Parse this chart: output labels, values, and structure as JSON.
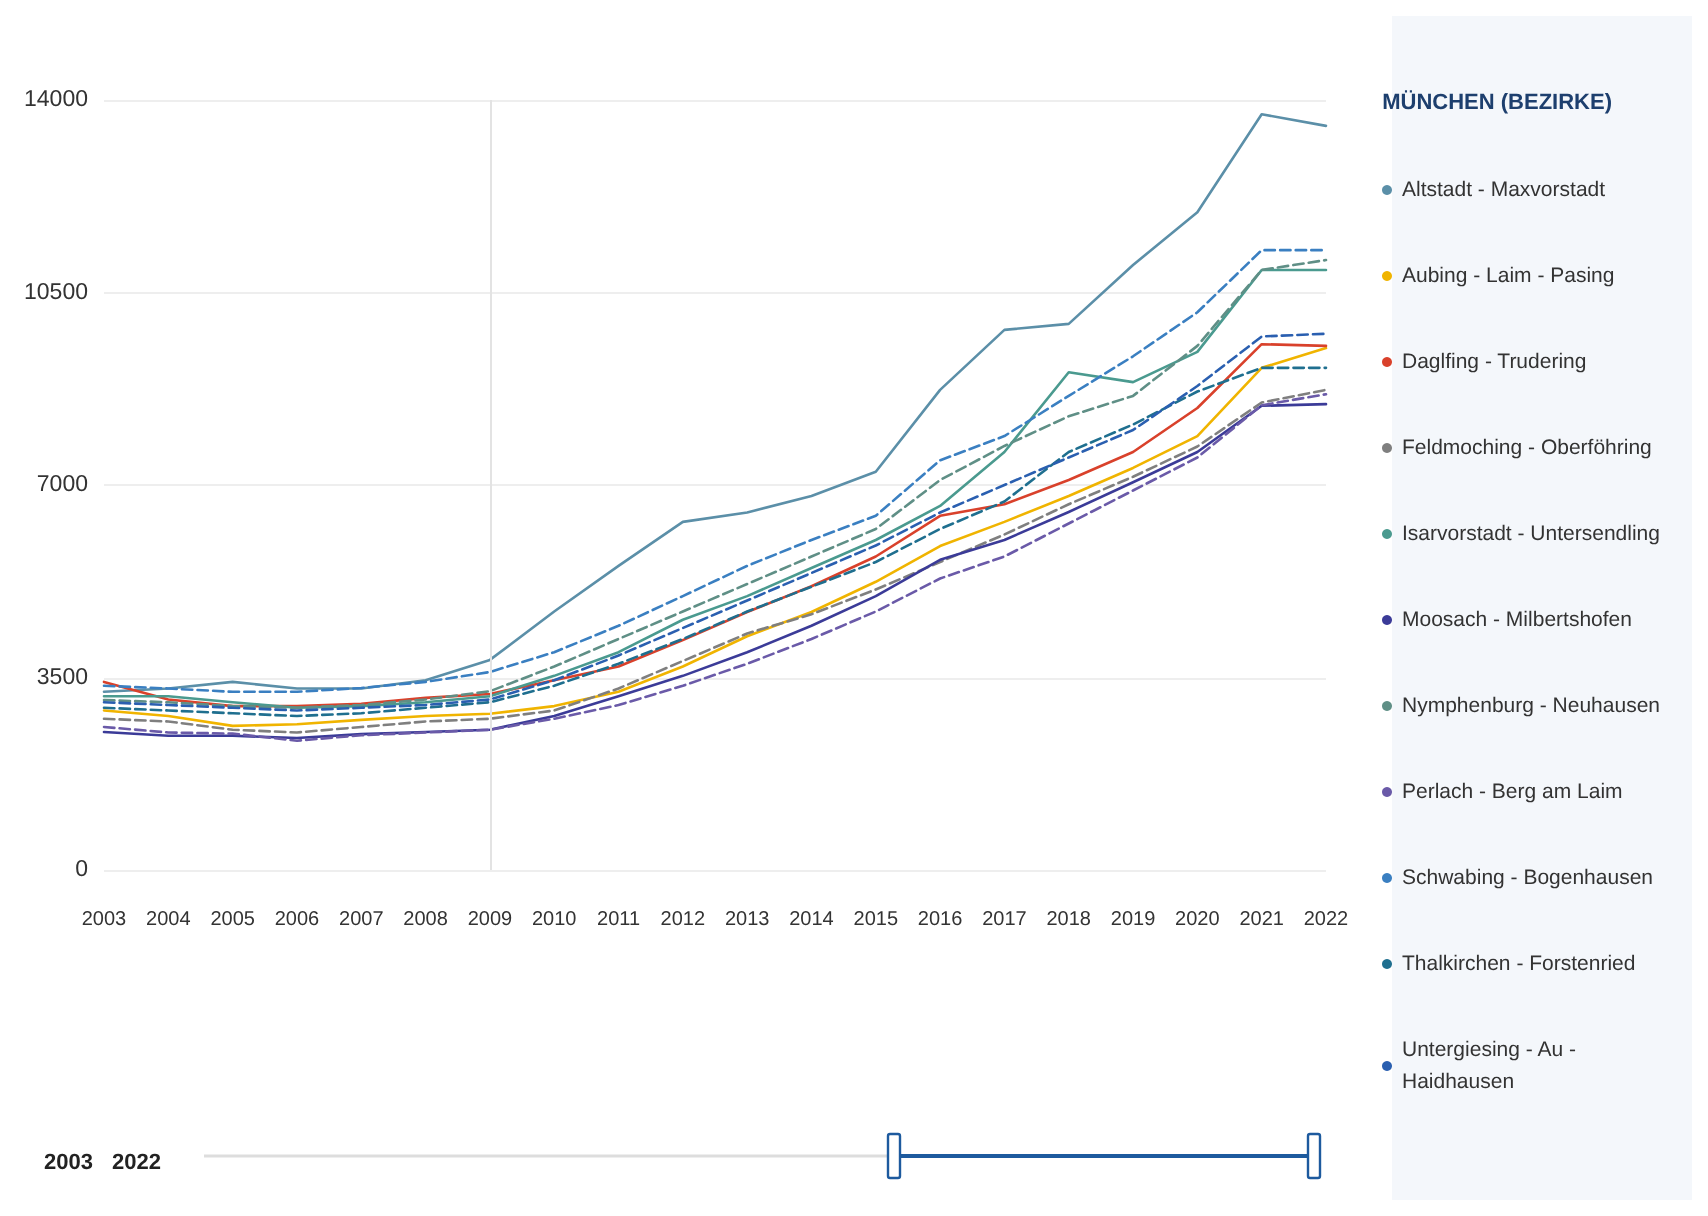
{
  "chart_data": {
    "type": "line",
    "legend_title": "MÜNCHEN (BEZIRKE)",
    "legend": "right",
    "grid": "y",
    "marker": "none",
    "categories": [
      "2003",
      "2004",
      "2005",
      "2006",
      "2007",
      "2008",
      "2009",
      "2010",
      "2011",
      "2012",
      "2013",
      "2014",
      "2015",
      "2016",
      "2017",
      "2018",
      "2019",
      "2020",
      "2021",
      "2022"
    ],
    "ylim": [
      0,
      14000
    ],
    "yticks": [
      0,
      3500,
      7000,
      10500,
      14000
    ],
    "ref_lines": [
      {
        "axis": "x",
        "value": "2009",
        "color": "#e3e3e3"
      }
    ],
    "annotations": [
      "2003",
      "2022"
    ],
    "series": [
      {
        "name": "Altstadt - Maxvorstadt",
        "color": "#5b8fa8",
        "line_style": "solid",
        "values": [
          3240,
          3300,
          3420,
          3300,
          3300,
          3450,
          3820,
          4700,
          5530,
          6330,
          6500,
          6800,
          7240,
          8730,
          9820,
          9930,
          11000,
          11960,
          13740,
          13530
        ]
      },
      {
        "name": "Aubing - Laim - Pasing",
        "color": "#f0b400",
        "line_style": "solid",
        "values": [
          2900,
          2800,
          2620,
          2650,
          2730,
          2800,
          2840,
          2980,
          3240,
          3700,
          4250,
          4690,
          5240,
          5890,
          6330,
          6800,
          7310,
          7890,
          9130,
          9490
        ]
      },
      {
        "name": "Daglfing - Trudering",
        "color": "#d9412b",
        "line_style": "solid",
        "values": [
          3420,
          3100,
          2980,
          2980,
          3020,
          3130,
          3200,
          3450,
          3700,
          4180,
          4690,
          5160,
          5700,
          6440,
          6650,
          7090,
          7600,
          8400,
          9560,
          9530
        ]
      },
      {
        "name": "Feldmoching - Oberföhring",
        "color": "#7f7f7f",
        "line_style": "dashed",
        "values": [
          2750,
          2700,
          2550,
          2500,
          2600,
          2700,
          2750,
          2900,
          3300,
          3800,
          4300,
          4650,
          5100,
          5600,
          6100,
          6650,
          7150,
          7700,
          8500,
          8730
        ]
      },
      {
        "name": "Isarvorstadt - Untersendling",
        "color": "#4a9a8f",
        "line_style": "solid",
        "values": [
          3160,
          3160,
          3050,
          2950,
          2980,
          3050,
          3160,
          3530,
          3960,
          4550,
          4980,
          5490,
          6000,
          6620,
          7600,
          9050,
          8870,
          9420,
          10910,
          10910
        ]
      },
      {
        "name": "Moosach - Milbertshofen",
        "color": "#3b3b98",
        "line_style": "solid",
        "values": [
          2510,
          2440,
          2440,
          2400,
          2470,
          2510,
          2550,
          2800,
          3160,
          3530,
          3960,
          4440,
          4980,
          5640,
          6000,
          6510,
          7050,
          7600,
          8440,
          8470
        ]
      },
      {
        "name": "Nymphenburg - Neuhausen",
        "color": "#5f8f86",
        "line_style": "dashed",
        "values": [
          3090,
          3050,
          2980,
          2950,
          3000,
          3100,
          3250,
          3700,
          4200,
          4700,
          5200,
          5700,
          6200,
          7090,
          7710,
          8250,
          8620,
          9530,
          10910,
          11090
        ]
      },
      {
        "name": "Perlach - Berg am Laim",
        "color": "#6a5aa8",
        "line_style": "dashed",
        "values": [
          2600,
          2500,
          2480,
          2350,
          2450,
          2500,
          2550,
          2750,
          3000,
          3350,
          3750,
          4200,
          4700,
          5300,
          5700,
          6300,
          6900,
          7500,
          8450,
          8650
        ]
      },
      {
        "name": "Schwabing - Bogenhausen",
        "color": "#3a7fc1",
        "line_style": "dashed",
        "values": [
          3350,
          3300,
          3240,
          3240,
          3310,
          3420,
          3600,
          3960,
          4440,
          4980,
          5530,
          6000,
          6440,
          7450,
          7890,
          8620,
          9340,
          10140,
          11270,
          11270
        ]
      },
      {
        "name": "Thalkirchen - Forstenried",
        "color": "#1f6f8f",
        "line_style": "dashed",
        "values": [
          2950,
          2900,
          2850,
          2800,
          2850,
          2950,
          3050,
          3350,
          3750,
          4200,
          4700,
          5150,
          5600,
          6200,
          6700,
          7600,
          8100,
          8700,
          9130,
          9130
        ]
      },
      {
        "name": "Untergiesing - Au - Haidhausen",
        "color": "#2a5fb0",
        "line_style": "dashed",
        "values": [
          3050,
          3000,
          2950,
          2900,
          2950,
          3000,
          3100,
          3450,
          3900,
          4400,
          4900,
          5400,
          5900,
          6500,
          7000,
          7500,
          8000,
          8800,
          9700,
          9750
        ]
      }
    ]
  }
}
